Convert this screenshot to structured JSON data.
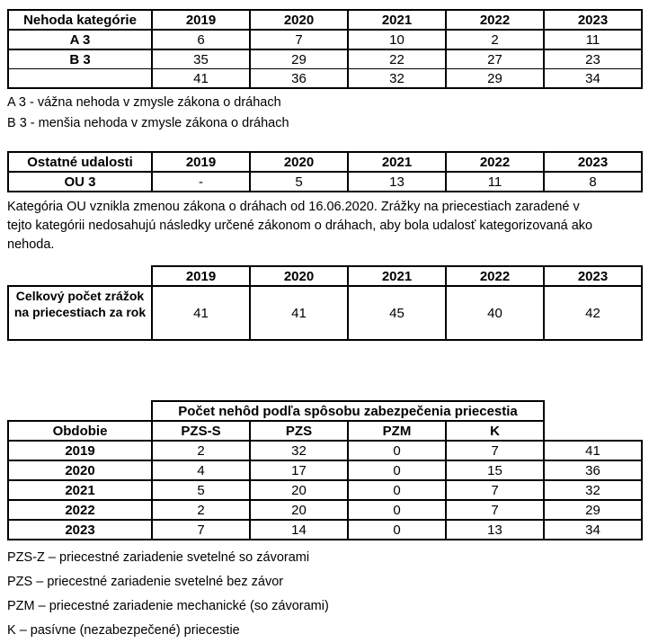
{
  "colors": {
    "background": "#ffffff",
    "text": "#000000",
    "border": "#000000"
  },
  "table1": {
    "header": [
      "Nehoda kategórie",
      "2019",
      "2020",
      "2021",
      "2022",
      "2023"
    ],
    "rows": [
      {
        "label": "A 3",
        "values": [
          "6",
          "7",
          "10",
          "2",
          "11"
        ]
      },
      {
        "label": "B 3",
        "values": [
          "35",
          "29",
          "22",
          "27",
          "23"
        ]
      },
      {
        "label": "",
        "values": [
          "41",
          "36",
          "32",
          "29",
          "34"
        ]
      }
    ],
    "notes": [
      "A 3 - vážna nehoda v zmysle zákona o dráhach",
      "B 3 - menšia nehoda v zmysle zákona o dráhach"
    ]
  },
  "table2": {
    "header": [
      "Ostatné udalosti",
      "2019",
      "2020",
      "2021",
      "2022",
      "2023"
    ],
    "rows": [
      {
        "label": "OU 3",
        "values": [
          "-",
          "5",
          "13",
          "11",
          "8"
        ]
      }
    ],
    "paragraph_lines": [
      "Kategória OU vznikla zmenou zákona o dráhach od 16.06.2020. Zrážky na priecestiach zaradené v",
      "tejto kategórii nedosahujú následky určené zákonom o dráhach, aby bola udalosť kategorizovaná ako",
      "nehoda."
    ]
  },
  "table3": {
    "years": [
      "2019",
      "2020",
      "2021",
      "2022",
      "2023"
    ],
    "label_lines": [
      "Celkový počet zrážok",
      "na priecestiach za rok"
    ],
    "values": [
      "41",
      "41",
      "45",
      "40",
      "42"
    ]
  },
  "table4": {
    "group_header": "Počet nehôd podľa spôsobu zabezpečenia priecestia",
    "col_headers": [
      "Obdobie",
      "PZS-S",
      "PZS",
      "PZM",
      "K"
    ],
    "rows": [
      {
        "year": "2019",
        "values": [
          "2",
          "32",
          "0",
          "7"
        ],
        "total": "41"
      },
      {
        "year": "2020",
        "values": [
          "4",
          "17",
          "0",
          "15"
        ],
        "total": "36"
      },
      {
        "year": "2021",
        "values": [
          "5",
          "20",
          "0",
          "7"
        ],
        "total": "32"
      },
      {
        "year": "2022",
        "values": [
          "2",
          "20",
          "0",
          "7"
        ],
        "total": "29"
      },
      {
        "year": "2023",
        "values": [
          "7",
          "14",
          "0",
          "13"
        ],
        "total": "34"
      }
    ],
    "legend": [
      "PZS-Z – priecestné zariadenie svetelné so závorami",
      "PZS – priecestné zariadenie svetelné bez závor",
      "PZM – priecestné zariadenie mechanické (so závorami)",
      "K – pasívne (nezabezpečené) priecestie"
    ]
  }
}
